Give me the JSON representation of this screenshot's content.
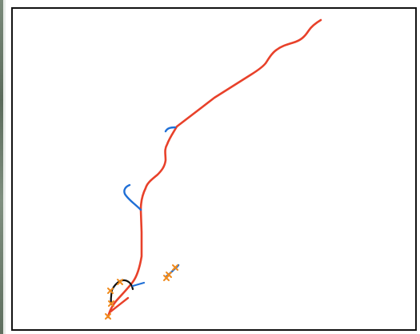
{
  "map": {
    "colors": {
      "main_route": "#e8412a",
      "side_route": "#1f6fd6",
      "loop_route": "#111111",
      "waypoint": "#f08a1c",
      "frame": "#111111",
      "background": "#ffffff"
    },
    "icons": {
      "waypoint": "cross-marker-icon"
    }
  }
}
